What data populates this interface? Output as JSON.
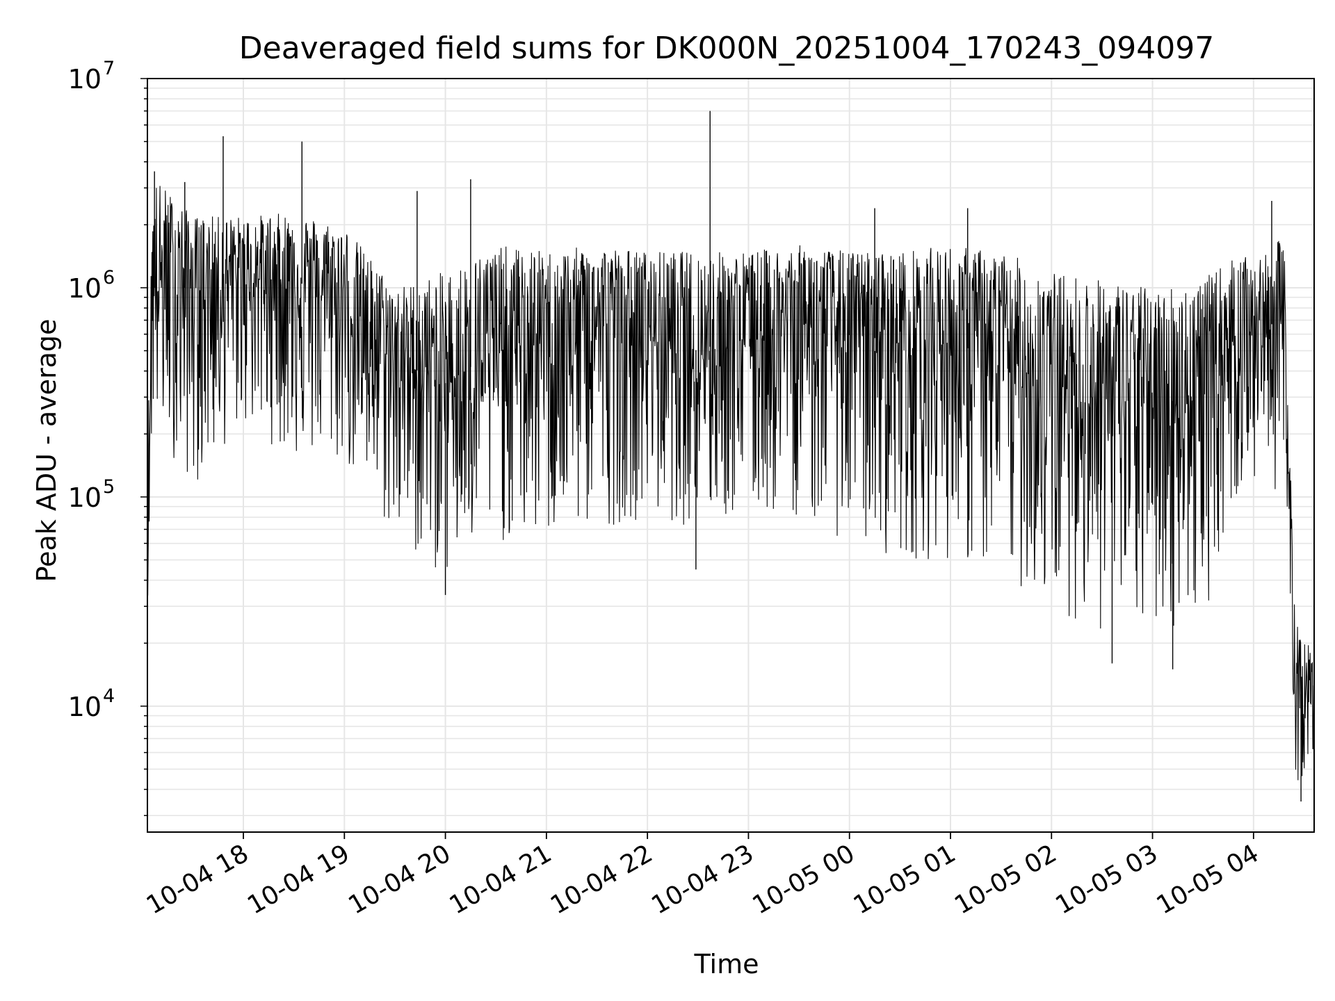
{
  "chart_data": {
    "type": "line",
    "title": "Deaveraged field sums for DK000N_20251004_170243_094097",
    "xlabel": "Time",
    "ylabel": "Peak ADU - average",
    "yscale": "log",
    "ylim": [
      2500,
      10000000
    ],
    "xlim_hours": [
      17.05,
      28.6
    ],
    "grid": true,
    "grid_minor": true,
    "legend": "none",
    "line_color": "#000000",
    "grid_color": "#e6e6e6",
    "x_ticks": [
      {
        "hour": 18,
        "label": "10-04 18"
      },
      {
        "hour": 19,
        "label": "10-04 19"
      },
      {
        "hour": 20,
        "label": "10-04 20"
      },
      {
        "hour": 21,
        "label": "10-04 21"
      },
      {
        "hour": 22,
        "label": "10-04 22"
      },
      {
        "hour": 23,
        "label": "10-04 23"
      },
      {
        "hour": 24,
        "label": "10-05 00"
      },
      {
        "hour": 25,
        "label": "10-05 01"
      },
      {
        "hour": 26,
        "label": "10-05 02"
      },
      {
        "hour": 27,
        "label": "10-05 03"
      },
      {
        "hour": 28,
        "label": "10-05 04"
      }
    ],
    "y_ticks": [
      {
        "value": 10000,
        "base": "10",
        "exp": "4"
      },
      {
        "value": 100000,
        "base": "10",
        "exp": "5"
      },
      {
        "value": 1000000,
        "base": "10",
        "exp": "6"
      },
      {
        "value": 10000000,
        "base": "10",
        "exp": "7"
      }
    ],
    "envelope": [
      {
        "hour": 17.05,
        "top": 130000,
        "bottom": 28000,
        "median": 60000
      },
      {
        "hour": 17.1,
        "top": 3500000,
        "bottom": 220000,
        "median": 1000000
      },
      {
        "hour": 17.5,
        "top": 2200000,
        "bottom": 110000,
        "median": 1000000
      },
      {
        "hour": 18.0,
        "top": 2200000,
        "bottom": 220000,
        "median": 1100000
      },
      {
        "hour": 18.5,
        "top": 2300000,
        "bottom": 150000,
        "median": 1100000
      },
      {
        "hour": 19.0,
        "top": 2000000,
        "bottom": 140000,
        "median": 800000
      },
      {
        "hour": 19.5,
        "top": 1000000,
        "bottom": 60000,
        "median": 450000
      },
      {
        "hour": 20.0,
        "top": 1200000,
        "bottom": 40000,
        "median": 350000
      },
      {
        "hour": 20.5,
        "top": 1600000,
        "bottom": 60000,
        "median": 500000
      },
      {
        "hour": 21.0,
        "top": 1500000,
        "bottom": 60000,
        "median": 550000
      },
      {
        "hour": 21.5,
        "top": 1600000,
        "bottom": 70000,
        "median": 700000
      },
      {
        "hour": 22.0,
        "top": 1500000,
        "bottom": 80000,
        "median": 600000
      },
      {
        "hour": 22.5,
        "top": 1500000,
        "bottom": 70000,
        "median": 500000
      },
      {
        "hour": 23.0,
        "top": 1500000,
        "bottom": 80000,
        "median": 600000
      },
      {
        "hour": 23.5,
        "top": 1600000,
        "bottom": 80000,
        "median": 700000
      },
      {
        "hour": 24.0,
        "top": 1500000,
        "bottom": 60000,
        "median": 600000
      },
      {
        "hour": 24.5,
        "top": 1500000,
        "bottom": 50000,
        "median": 550000
      },
      {
        "hour": 25.0,
        "top": 1600000,
        "bottom": 50000,
        "median": 550000
      },
      {
        "hour": 25.5,
        "top": 1500000,
        "bottom": 40000,
        "median": 450000
      },
      {
        "hour": 26.0,
        "top": 1200000,
        "bottom": 30000,
        "median": 350000
      },
      {
        "hour": 26.5,
        "top": 1100000,
        "bottom": 22000,
        "median": 300000
      },
      {
        "hour": 27.0,
        "top": 1000000,
        "bottom": 22000,
        "median": 280000
      },
      {
        "hour": 27.5,
        "top": 1100000,
        "bottom": 25000,
        "median": 300000
      },
      {
        "hour": 27.8,
        "top": 1400000,
        "bottom": 90000,
        "median": 600000
      },
      {
        "hour": 28.1,
        "top": 1400000,
        "bottom": 120000,
        "median": 650000
      },
      {
        "hour": 28.3,
        "top": 1800000,
        "bottom": 100000,
        "median": 700000
      },
      {
        "hour": 28.35,
        "top": 300000,
        "bottom": 30000,
        "median": 100000
      },
      {
        "hour": 28.42,
        "top": 25000,
        "bottom": 4000,
        "median": 12000
      },
      {
        "hour": 28.6,
        "top": 18000,
        "bottom": 6000,
        "median": 10000
      }
    ],
    "spikes": [
      {
        "hour": 17.8,
        "value": 5300000
      },
      {
        "hour": 18.58,
        "value": 5000000
      },
      {
        "hour": 19.72,
        "value": 2900000
      },
      {
        "hour": 20.25,
        "value": 3300000
      },
      {
        "hour": 22.62,
        "value": 7000000
      },
      {
        "hour": 24.25,
        "value": 2400000
      },
      {
        "hour": 25.17,
        "value": 2400000
      },
      {
        "hour": 28.18,
        "value": 2600000
      },
      {
        "hour": 17.12,
        "value": 3600000
      },
      {
        "hour": 17.42,
        "value": 3200000
      },
      {
        "hour": 22.48,
        "value": 45000
      },
      {
        "hour": 20.0,
        "value": 34000
      },
      {
        "hour": 26.6,
        "value": 16000
      },
      {
        "hour": 27.2,
        "value": 15000
      },
      {
        "hour": 28.47,
        "value": 3500
      }
    ]
  }
}
